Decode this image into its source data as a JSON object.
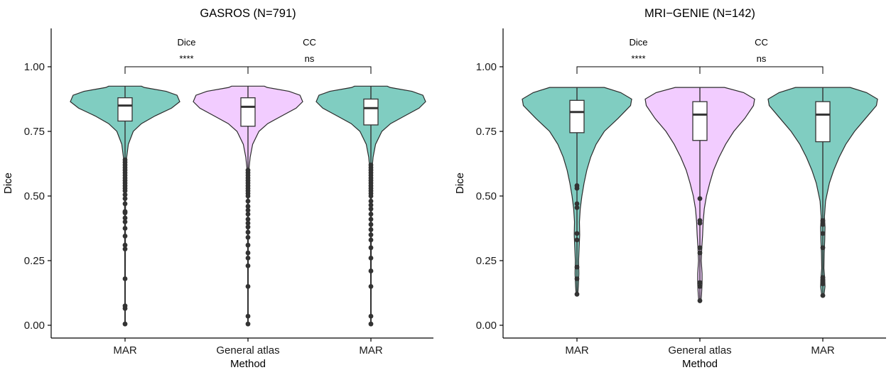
{
  "colors": {
    "mar": "#80CDC1",
    "general": "#F2CCFF",
    "outline": "#2b2b2b",
    "box_line": "#333333"
  },
  "chart_data": [
    {
      "type": "violin",
      "title": "GASROS (N=791)",
      "xlabel": "Method",
      "ylabel": "Dice",
      "ylim": [
        0,
        1.1
      ],
      "yticks": [
        0.0,
        0.25,
        0.5,
        0.75,
        1.0
      ],
      "ytick_labels": [
        "0.00",
        "0.25",
        "0.50",
        "0.75",
        "1.00"
      ],
      "categories": [
        "MAR",
        "General atlas",
        "MAR"
      ],
      "annotations": {
        "dice_label": "Dice",
        "cc_label": "CC",
        "dice_sig": "****",
        "cc_sig": "ns",
        "bracket_y": 1.0
      },
      "series": [
        {
          "fill": "#80CDC1",
          "box": {
            "q1": 0.79,
            "median": 0.85,
            "q3": 0.88,
            "whisker_low": 0.005,
            "whisker_high": 0.925
          },
          "density": [
            [
              0.005,
              0.005
            ],
            [
              0.1,
              0.005
            ],
            [
              0.2,
              0.006
            ],
            [
              0.3,
              0.007
            ],
            [
              0.4,
              0.008
            ],
            [
              0.5,
              0.009
            ],
            [
              0.55,
              0.011
            ],
            [
              0.6,
              0.015
            ],
            [
              0.65,
              0.03
            ],
            [
              0.7,
              0.06
            ],
            [
              0.75,
              0.15
            ],
            [
              0.78,
              0.3
            ],
            [
              0.81,
              0.55
            ],
            [
              0.84,
              0.85
            ],
            [
              0.865,
              1.0
            ],
            [
              0.89,
              0.95
            ],
            [
              0.905,
              0.75
            ],
            [
              0.92,
              0.35
            ],
            [
              0.925,
              0.3
            ]
          ],
          "outliers": [
            0.005,
            0.065,
            0.075,
            0.18,
            0.295,
            0.31,
            0.345,
            0.375,
            0.4,
            0.415,
            0.435,
            0.44,
            0.47,
            0.49,
            0.505,
            0.52,
            0.53,
            0.54,
            0.55,
            0.56,
            0.57,
            0.58,
            0.59,
            0.6,
            0.61,
            0.62,
            0.63,
            0.64
          ]
        },
        {
          "fill": "#F2CCFF",
          "box": {
            "q1": 0.77,
            "median": 0.845,
            "q3": 0.88,
            "whisker_low": 0.005,
            "whisker_high": 0.925
          },
          "density": [
            [
              0.005,
              0.005
            ],
            [
              0.1,
              0.005
            ],
            [
              0.2,
              0.006
            ],
            [
              0.3,
              0.007
            ],
            [
              0.4,
              0.008
            ],
            [
              0.5,
              0.009
            ],
            [
              0.55,
              0.011
            ],
            [
              0.6,
              0.016
            ],
            [
              0.65,
              0.04
            ],
            [
              0.7,
              0.085
            ],
            [
              0.75,
              0.2
            ],
            [
              0.78,
              0.36
            ],
            [
              0.81,
              0.62
            ],
            [
              0.84,
              0.88
            ],
            [
              0.865,
              1.0
            ],
            [
              0.89,
              0.95
            ],
            [
              0.905,
              0.75
            ],
            [
              0.92,
              0.35
            ],
            [
              0.925,
              0.3
            ]
          ],
          "outliers": [
            0.005,
            0.035,
            0.15,
            0.23,
            0.26,
            0.28,
            0.31,
            0.34,
            0.36,
            0.38,
            0.395,
            0.41,
            0.43,
            0.445,
            0.46,
            0.48,
            0.5,
            0.51,
            0.52,
            0.53,
            0.54,
            0.55,
            0.56,
            0.57,
            0.58,
            0.59,
            0.6
          ]
        },
        {
          "fill": "#80CDC1",
          "box": {
            "q1": 0.775,
            "median": 0.84,
            "q3": 0.875,
            "whisker_low": 0.005,
            "whisker_high": 0.925
          },
          "density": [
            [
              0.005,
              0.005
            ],
            [
              0.1,
              0.005
            ],
            [
              0.2,
              0.006
            ],
            [
              0.3,
              0.007
            ],
            [
              0.4,
              0.008
            ],
            [
              0.5,
              0.01
            ],
            [
              0.55,
              0.013
            ],
            [
              0.6,
              0.018
            ],
            [
              0.65,
              0.04
            ],
            [
              0.7,
              0.085
            ],
            [
              0.75,
              0.2
            ],
            [
              0.78,
              0.36
            ],
            [
              0.81,
              0.62
            ],
            [
              0.84,
              0.88
            ],
            [
              0.865,
              1.0
            ],
            [
              0.89,
              0.95
            ],
            [
              0.905,
              0.75
            ],
            [
              0.92,
              0.35
            ],
            [
              0.925,
              0.3
            ]
          ],
          "outliers": [
            0.005,
            0.035,
            0.15,
            0.21,
            0.26,
            0.3,
            0.33,
            0.35,
            0.37,
            0.39,
            0.41,
            0.43,
            0.45,
            0.465,
            0.48,
            0.5,
            0.51,
            0.52,
            0.53,
            0.54,
            0.55,
            0.56,
            0.57,
            0.58,
            0.59,
            0.6,
            0.61,
            0.62
          ]
        }
      ]
    },
    {
      "type": "violin",
      "title": "MRI−GENIE (N=142)",
      "xlabel": "Method",
      "ylabel": "Dice",
      "ylim": [
        0,
        1.1
      ],
      "yticks": [
        0.0,
        0.25,
        0.5,
        0.75,
        1.0
      ],
      "ytick_labels": [
        "0.00",
        "0.25",
        "0.50",
        "0.75",
        "1.00"
      ],
      "categories": [
        "MAR",
        "General atlas",
        "MAR"
      ],
      "annotations": {
        "dice_label": "Dice",
        "cc_label": "CC",
        "dice_sig": "****",
        "cc_sig": "ns",
        "bracket_y": 1.0
      },
      "series": [
        {
          "fill": "#80CDC1",
          "box": {
            "q1": 0.745,
            "median": 0.825,
            "q3": 0.87,
            "whisker_low": 0.12,
            "whisker_high": 0.92
          },
          "density": [
            [
              0.12,
              0.015
            ],
            [
              0.15,
              0.025
            ],
            [
              0.2,
              0.035
            ],
            [
              0.25,
              0.03
            ],
            [
              0.3,
              0.04
            ],
            [
              0.35,
              0.05
            ],
            [
              0.4,
              0.045
            ],
            [
              0.45,
              0.06
            ],
            [
              0.5,
              0.09
            ],
            [
              0.55,
              0.13
            ],
            [
              0.6,
              0.18
            ],
            [
              0.65,
              0.25
            ],
            [
              0.7,
              0.35
            ],
            [
              0.75,
              0.5
            ],
            [
              0.8,
              0.75
            ],
            [
              0.85,
              0.98
            ],
            [
              0.875,
              1.0
            ],
            [
              0.9,
              0.8
            ],
            [
              0.92,
              0.5
            ]
          ],
          "outliers": [
            0.12,
            0.18,
            0.225,
            0.33,
            0.355,
            0.455,
            0.47,
            0.53,
            0.54
          ]
        },
        {
          "fill": "#F2CCFF",
          "box": {
            "q1": 0.715,
            "median": 0.815,
            "q3": 0.865,
            "whisker_low": 0.095,
            "whisker_high": 0.92
          },
          "density": [
            [
              0.095,
              0.02
            ],
            [
              0.12,
              0.03
            ],
            [
              0.16,
              0.04
            ],
            [
              0.2,
              0.04
            ],
            [
              0.25,
              0.025
            ],
            [
              0.3,
              0.035
            ],
            [
              0.35,
              0.05
            ],
            [
              0.4,
              0.06
            ],
            [
              0.45,
              0.08
            ],
            [
              0.5,
              0.12
            ],
            [
              0.55,
              0.18
            ],
            [
              0.6,
              0.25
            ],
            [
              0.65,
              0.35
            ],
            [
              0.7,
              0.47
            ],
            [
              0.75,
              0.62
            ],
            [
              0.8,
              0.82
            ],
            [
              0.85,
              0.98
            ],
            [
              0.875,
              1.0
            ],
            [
              0.9,
              0.8
            ],
            [
              0.92,
              0.45
            ]
          ],
          "outliers": [
            0.095,
            0.15,
            0.165,
            0.28,
            0.3,
            0.395,
            0.405,
            0.49
          ]
        },
        {
          "fill": "#80CDC1",
          "box": {
            "q1": 0.71,
            "median": 0.815,
            "q3": 0.865,
            "whisker_low": 0.115,
            "whisker_high": 0.92
          },
          "density": [
            [
              0.115,
              0.02
            ],
            [
              0.15,
              0.04
            ],
            [
              0.18,
              0.035
            ],
            [
              0.22,
              0.02
            ],
            [
              0.28,
              0.025
            ],
            [
              0.33,
              0.035
            ],
            [
              0.38,
              0.04
            ],
            [
              0.42,
              0.03
            ],
            [
              0.48,
              0.05
            ],
            [
              0.55,
              0.12
            ],
            [
              0.6,
              0.2
            ],
            [
              0.65,
              0.3
            ],
            [
              0.7,
              0.42
            ],
            [
              0.75,
              0.58
            ],
            [
              0.8,
              0.78
            ],
            [
              0.85,
              0.98
            ],
            [
              0.875,
              1.0
            ],
            [
              0.9,
              0.8
            ],
            [
              0.92,
              0.5
            ]
          ],
          "outliers": [
            0.115,
            0.16,
            0.175,
            0.185,
            0.3,
            0.355,
            0.39,
            0.405
          ]
        }
      ]
    }
  ]
}
